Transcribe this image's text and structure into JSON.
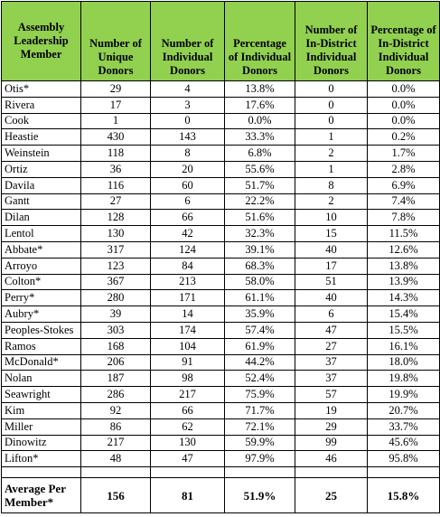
{
  "table": {
    "header": [
      "Assembly Leadership Member",
      "Number of Unique Donors",
      "Number of Individual Donors",
      "Percentage of Individual Donors",
      "Number of In-District Individual Donors",
      "Percentage of In-District Individual Donors"
    ],
    "rows": [
      [
        "Otis*",
        "29",
        "4",
        "13.8%",
        "0",
        "0.0%"
      ],
      [
        "Rivera",
        "17",
        "3",
        "17.6%",
        "0",
        "0.0%"
      ],
      [
        "Cook",
        "1",
        "0",
        "0.0%",
        "0",
        "0.0%"
      ],
      [
        "Heastie",
        "430",
        "143",
        "33.3%",
        "1",
        "0.2%"
      ],
      [
        "Weinstein",
        "118",
        "8",
        "6.8%",
        "2",
        "1.7%"
      ],
      [
        "Ortiz",
        "36",
        "20",
        "55.6%",
        "1",
        "2.8%"
      ],
      [
        "Davila",
        "116",
        "60",
        "51.7%",
        "8",
        "6.9%"
      ],
      [
        "Gantt",
        "27",
        "6",
        "22.2%",
        "2",
        "7.4%"
      ],
      [
        "Dilan",
        "128",
        "66",
        "51.6%",
        "10",
        "7.8%"
      ],
      [
        "Lentol",
        "130",
        "42",
        "32.3%",
        "15",
        "11.5%"
      ],
      [
        "Abbate*",
        "317",
        "124",
        "39.1%",
        "40",
        "12.6%"
      ],
      [
        "Arroyo",
        "123",
        "84",
        "68.3%",
        "17",
        "13.8%"
      ],
      [
        "Colton*",
        "367",
        "213",
        "58.0%",
        "51",
        "13.9%"
      ],
      [
        "Perry*",
        "280",
        "171",
        "61.1%",
        "40",
        "14.3%"
      ],
      [
        "Aubry*",
        "39",
        "14",
        "35.9%",
        "6",
        "15.4%"
      ],
      [
        "Peoples-Stokes",
        "303",
        "174",
        "57.4%",
        "47",
        "15.5%"
      ],
      [
        "Ramos",
        "168",
        "104",
        "61.9%",
        "27",
        "16.1%"
      ],
      [
        "McDonald*",
        "206",
        "91",
        "44.2%",
        "37",
        "18.0%"
      ],
      [
        "Nolan",
        "187",
        "98",
        "52.4%",
        "37",
        "19.8%"
      ],
      [
        "Seawright",
        "286",
        "217",
        "75.9%",
        "57",
        "19.9%"
      ],
      [
        "Kim",
        "92",
        "66",
        "71.7%",
        "19",
        "20.7%"
      ],
      [
        "Miller",
        "86",
        "62",
        "72.1%",
        "29",
        "33.7%"
      ],
      [
        "Dinowitz",
        "217",
        "130",
        "59.9%",
        "99",
        "45.6%"
      ],
      [
        "Lifton*",
        "48",
        "47",
        "97.9%",
        "46",
        "95.8%"
      ]
    ],
    "average": [
      "Average Per Member*",
      "156",
      "81",
      "51.9%",
      "25",
      "15.8%"
    ]
  }
}
